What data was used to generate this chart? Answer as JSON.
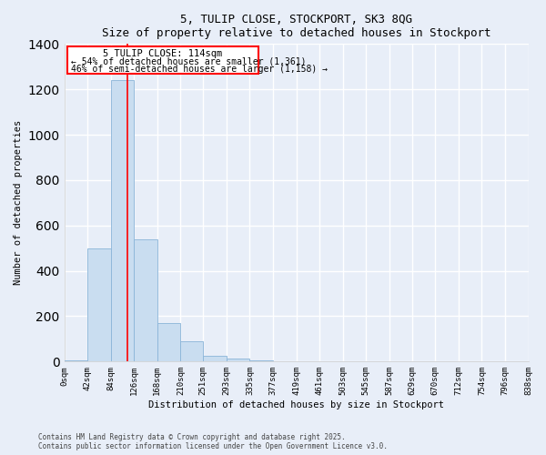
{
  "title": "5, TULIP CLOSE, STOCKPORT, SK3 8QG",
  "subtitle": "Size of property relative to detached houses in Stockport",
  "xlabel": "Distribution of detached houses by size in Stockport",
  "ylabel": "Number of detached properties",
  "bar_color": "#c9ddf0",
  "bar_edge_color": "#8ab4d8",
  "background_color": "#e8eef8",
  "fig_background": "#e8eef8",
  "bin_edges": [
    0,
    42,
    84,
    126,
    168,
    210,
    251,
    293,
    335,
    377,
    419,
    461,
    503,
    545,
    587,
    629,
    670,
    712,
    754,
    796,
    838
  ],
  "bar_heights": [
    5,
    500,
    1240,
    540,
    170,
    90,
    25,
    15,
    5,
    0,
    0,
    0,
    0,
    0,
    0,
    0,
    0,
    0,
    0,
    0
  ],
  "ylim": [
    0,
    1400
  ],
  "yticks": [
    0,
    200,
    400,
    600,
    800,
    1000,
    1200,
    1400
  ],
  "red_line_x": 114,
  "annotation_title": "5 TULIP CLOSE: 114sqm",
  "annotation_line1": "← 54% of detached houses are smaller (1,361)",
  "annotation_line2": "46% of semi-detached houses are larger (1,158) →",
  "footnote1": "Contains HM Land Registry data © Crown copyright and database right 2025.",
  "footnote2": "Contains public sector information licensed under the Open Government Licence v3.0."
}
